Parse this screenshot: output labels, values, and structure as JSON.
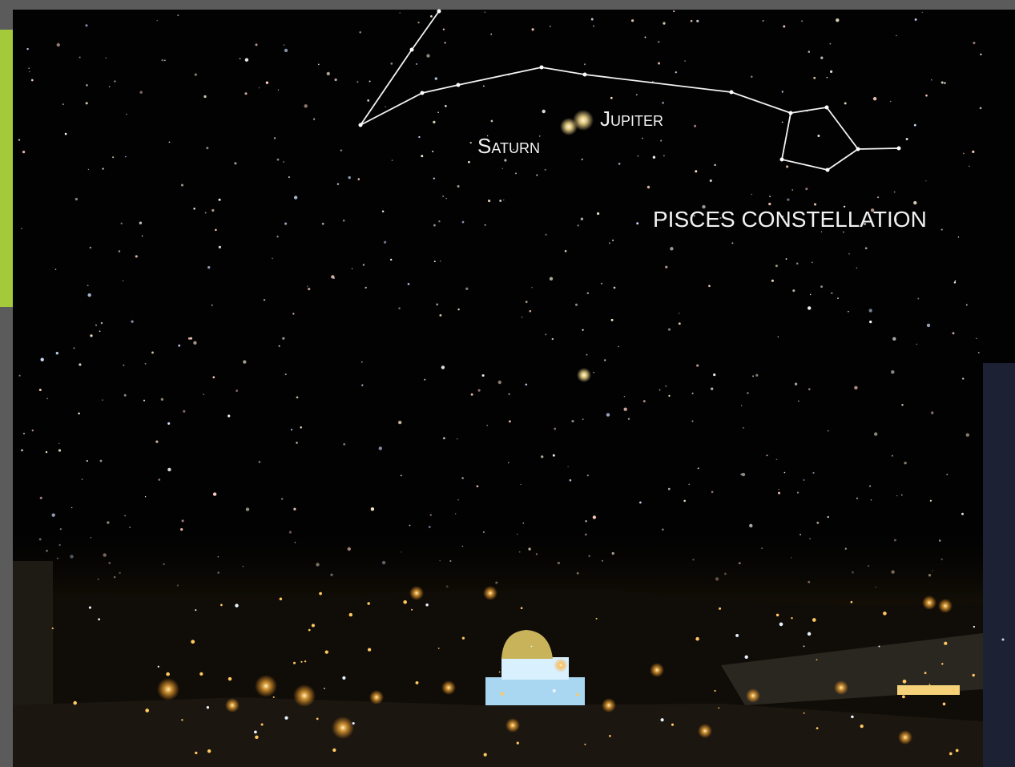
{
  "labels": {
    "jupiter": "Jupiter",
    "saturn": "Saturn",
    "constellation": "PISCES CONSTELLATION"
  }
}
